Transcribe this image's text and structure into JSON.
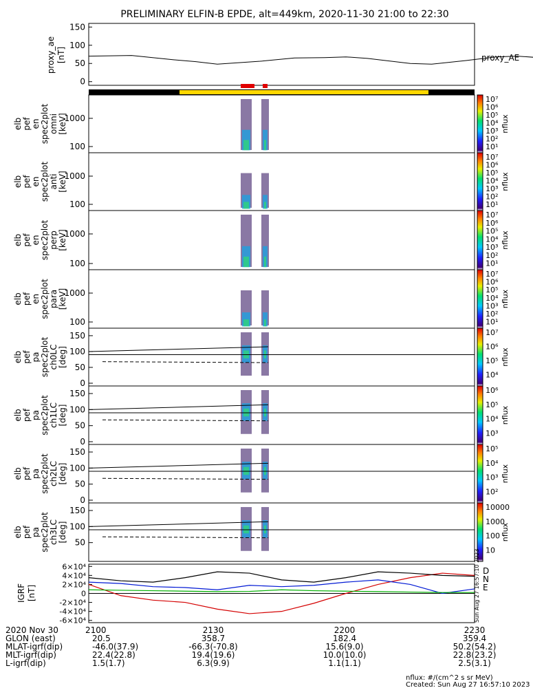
{
  "chart_data": {
    "type": "heatmap",
    "title": "PRELIMINARY ELFIN-B EPDE, alt=449km, 2020-11-30 21:00 to 22:30",
    "time_axis": {
      "ticks": [
        "2100",
        "2130",
        "2200",
        "2230"
      ],
      "rows": [
        {
          "label": "2020 Nov 30",
          "values": [
            "",
            "",
            "",
            ""
          ]
        },
        {
          "label": "GLON (east)",
          "values": [
            "20.5",
            "358.7",
            "182.4",
            "359.4"
          ]
        },
        {
          "label": "MLAT-igrf(dip)",
          "values": [
            "-46.0(37.9)",
            "-66.3(-70.8)",
            "15.6(9.0)",
            "50.2(54.2)"
          ]
        },
        {
          "label": "MLT-igrf(dip)",
          "values": [
            "22.4(22.8)",
            "19.4(19.6)",
            "10.0(10.0)",
            "22.8(23.2)"
          ]
        },
        {
          "label": "L-igrf(dip)",
          "values": [
            "1.5(1.7)",
            "6.3(9.9)",
            "1.1(1.1)",
            "2.5(3.1)"
          ]
        }
      ]
    },
    "proxy_ae": {
      "ylabel": [
        "proxy_ae",
        "[nT]"
      ],
      "yticks": [
        "150",
        "100",
        "50",
        "0"
      ],
      "ylim": [
        -10,
        160
      ],
      "legend": "proxy_AE",
      "x_min": [
        0,
        10,
        20,
        25,
        30,
        40,
        48,
        55,
        60,
        65,
        75,
        80,
        88,
        95,
        100,
        105,
        110,
        115,
        120
      ],
      "values": [
        70,
        72,
        60,
        55,
        48,
        56,
        65,
        66,
        68,
        64,
        50,
        48,
        58,
        68,
        70,
        66,
        62,
        58,
        55
      ]
    },
    "spectrogram_panels": [
      {
        "ylabel": [
          "elb",
          "pef",
          "en",
          "spec2plot",
          "omni",
          "[keV]"
        ],
        "yticks": [
          "1000",
          "100"
        ],
        "cbar": [
          "10^7",
          "10^6",
          "10^5",
          "10^4",
          "10^3",
          "10^2",
          "10^1"
        ],
        "cbar_label": "nflux"
      },
      {
        "ylabel": [
          "elb",
          "pef",
          "en",
          "spec2plot",
          "anti",
          "[keV]"
        ],
        "yticks": [
          "1000",
          "100"
        ],
        "cbar": [
          "10^7",
          "10^6",
          "10^5",
          "10^4",
          "10^3",
          "10^2",
          "10^1"
        ],
        "cbar_label": "nflux"
      },
      {
        "ylabel": [
          "elb",
          "pef",
          "en",
          "spec2plot",
          "perp",
          "[keV]"
        ],
        "yticks": [
          "1000",
          "100"
        ],
        "cbar": [
          "10^7",
          "10^6",
          "10^5",
          "10^4",
          "10^3",
          "10^2",
          "10^1"
        ],
        "cbar_label": "nflux"
      },
      {
        "ylabel": [
          "elb",
          "pef",
          "en",
          "spec2plot",
          "para",
          "[keV]"
        ],
        "yticks": [
          "1000",
          "100"
        ],
        "cbar": [
          "10^7",
          "10^6",
          "10^5",
          "10^4",
          "10^3",
          "10^2",
          "10^1"
        ],
        "cbar_label": "nflux"
      },
      {
        "ylabel": [
          "elb",
          "pef",
          "pa",
          "spec2plot",
          "ch0LC",
          "[deg]"
        ],
        "yticks": [
          "150",
          "100",
          "50",
          "0"
        ],
        "cbar": [
          "10^7",
          "10^6",
          "10^5",
          "10^4"
        ],
        "cbar_label": "nflux"
      },
      {
        "ylabel": [
          "elb",
          "pef",
          "pa",
          "spec2plot",
          "ch1LC",
          "[deg]"
        ],
        "yticks": [
          "150",
          "100",
          "50",
          "0"
        ],
        "cbar": [
          "10^6",
          "10^5",
          "10^4",
          "10^3"
        ],
        "cbar_label": "nflux"
      },
      {
        "ylabel": [
          "elb",
          "pef",
          "pa",
          "spec2plot",
          "ch2LC",
          "[deg]"
        ],
        "yticks": [
          "150",
          "100",
          "50",
          "0"
        ],
        "cbar": [
          "10^5",
          "10^4",
          "10^3",
          "10^2"
        ],
        "cbar_label": "nflux"
      },
      {
        "ylabel": [
          "elb",
          "pef",
          "pa",
          "spec2plot",
          "ch3LC",
          "[deg]"
        ],
        "yticks": [
          "150",
          "100",
          "50"
        ],
        "cbar": [
          "10000",
          "1000",
          "100",
          "10"
        ],
        "cbar_label": "nflux"
      }
    ],
    "igrf": {
      "ylabel": [
        "IGRF",
        "[nT]"
      ],
      "yticks": [
        "6×10^4",
        "4×10^4",
        "2×10^4",
        "0",
        "-2×10^4",
        "-4×10^4",
        "-6×10^4"
      ],
      "ylim": [
        -65000,
        65000
      ],
      "x_min": [
        0,
        10,
        20,
        30,
        40,
        50,
        60,
        70,
        80,
        90,
        100,
        110,
        120
      ],
      "series": [
        {
          "name": "D",
          "color": "#d40000",
          "values": [
            20000,
            -5000,
            -15000,
            -20000,
            -35000,
            -45000,
            -40000,
            -22000,
            0,
            20000,
            35000,
            45000,
            40000
          ]
        },
        {
          "name": "N",
          "color": "#0018d4",
          "values": [
            25000,
            22000,
            15000,
            13000,
            8000,
            18000,
            15000,
            18000,
            25000,
            30000,
            20000,
            0,
            10000
          ]
        },
        {
          "name": "E",
          "color": "#00b000",
          "values": [
            8000,
            7000,
            6000,
            5000,
            4000,
            4500,
            8000,
            6000,
            5000,
            4000,
            3000,
            2000,
            2000
          ]
        },
        {
          "name": "",
          "color": "#000000",
          "values": [
            35000,
            28000,
            25000,
            35000,
            48000,
            45000,
            30000,
            25000,
            35000,
            48000,
            45000,
            40000,
            38000
          ]
        }
      ]
    },
    "footer": {
      "unit_note": "nflux: #/(cm^2 s sr MeV)",
      "created": "Created: Sun Aug 27 16:57:10 2023",
      "side_stamp": "Sun Aug 27 16:57:10 2023"
    }
  }
}
